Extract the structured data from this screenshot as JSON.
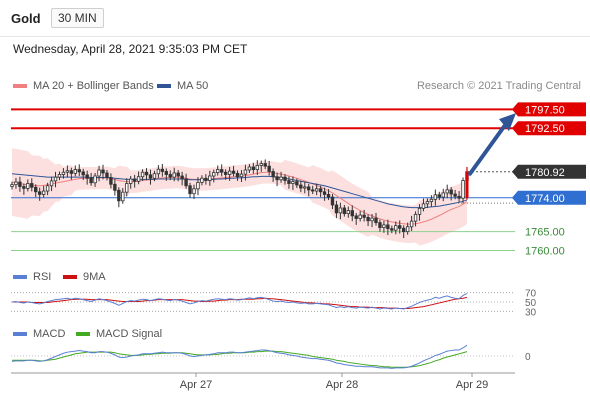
{
  "header": {
    "instrument": "Gold",
    "timeframe": "30 MIN"
  },
  "datetime": "Wednesday, April 28, 2021 9:35:03 PM CET",
  "credit": "Research © 2021 Trading Central",
  "colors": {
    "ma20": "#f08080",
    "ma50": "#2f5597",
    "bollinger": "#fbd5d5",
    "resistance": "#e00000",
    "pivot": "#2f6fd1",
    "support": "#8fd18f",
    "arrow": "#2f5597",
    "last": "#333333",
    "rsi": "#5a7fd4",
    "rsi_ma": "#cc1111",
    "macd": "#5a7fd4",
    "macd_signal": "#44aa22"
  },
  "legend_main": [
    {
      "label": "MA 20 + Bollinger Bands",
      "color": "#f08080"
    },
    {
      "label": "MA 50",
      "color": "#2f5597"
    }
  ],
  "legend_rsi": [
    {
      "label": "RSI",
      "color": "#5a7fd4"
    },
    {
      "label": "9MA",
      "color": "#cc1111"
    }
  ],
  "legend_macd": [
    {
      "label": "MACD",
      "color": "#5a7fd4"
    },
    {
      "label": "MACD Signal",
      "color": "#44aa22"
    }
  ],
  "chart_data": {
    "type": "candlestick",
    "ylim": [
      1758,
      1800
    ],
    "x_ticks": [
      "Apr 27",
      "Apr 28",
      "Apr 29"
    ],
    "levels": [
      {
        "label": "1797.50",
        "value": 1797.5,
        "kind": "resistance"
      },
      {
        "label": "1792.50",
        "value": 1792.5,
        "kind": "resistance"
      },
      {
        "label": "1780.92",
        "value": 1780.92,
        "kind": "last"
      },
      {
        "label": "1774.00",
        "value": 1774.0,
        "kind": "pivot"
      },
      {
        "label": "1765.00",
        "value": 1765.0,
        "kind": "support"
      },
      {
        "label": "1760.00",
        "value": 1760.0,
        "kind": "support"
      }
    ],
    "closes": [
      1777.5,
      1778.2,
      1777.0,
      1776.5,
      1777.8,
      1776.8,
      1775.6,
      1774.9,
      1775.8,
      1777.2,
      1778.5,
      1779.5,
      1780.2,
      1780.8,
      1781.2,
      1780.5,
      1781.5,
      1780.9,
      1780.1,
      1779.2,
      1778.0,
      1779.8,
      1781.4,
      1780.6,
      1779.4,
      1777.6,
      1776.0,
      1773.2,
      1775.5,
      1777.8,
      1779.0,
      1778.4,
      1779.6,
      1780.8,
      1780.1,
      1779.2,
      1780.4,
      1781.6,
      1781.0,
      1780.2,
      1779.5,
      1780.6,
      1779.8,
      1779.0,
      1777.2,
      1775.1,
      1776.4,
      1778.1,
      1779.2,
      1778.6,
      1779.8,
      1780.7,
      1781.5,
      1780.8,
      1780.2,
      1781.1,
      1780.5,
      1779.6,
      1780.3,
      1781.4,
      1782.2,
      1781.5,
      1782.6,
      1783.1,
      1782.4,
      1781.0,
      1779.6,
      1778.8,
      1779.5,
      1778.6,
      1777.8,
      1778.3,
      1777.4,
      1776.6,
      1776.9,
      1776.1,
      1775.8,
      1776.4,
      1775.6,
      1774.9,
      1774.2,
      1772.1,
      1770.0,
      1771.3,
      1769.8,
      1770.6,
      1769.2,
      1768.5,
      1769.4,
      1768.8,
      1767.9,
      1768.6,
      1767.4,
      1766.1,
      1766.8,
      1765.8,
      1765.4,
      1766.6,
      1765.9,
      1765.0,
      1766.3,
      1767.8,
      1769.6,
      1771.2,
      1772.4,
      1773.0,
      1773.6,
      1774.8,
      1774.2,
      1775.3,
      1776.1,
      1775.0,
      1774.4,
      1773.9,
      1778.6,
      1780.92
    ],
    "ma20": [
      1778.2,
      1778.0,
      1777.8,
      1777.6,
      1777.4,
      1777.3,
      1777.2,
      1777.2,
      1777.3,
      1777.5,
      1777.7,
      1777.9,
      1778.1,
      1778.3,
      1778.5,
      1778.7,
      1778.9,
      1779.1,
      1779.2,
      1779.2,
      1779.2,
      1779.2,
      1779.3,
      1779.3,
      1779.3,
      1779.1,
      1778.9,
      1778.6,
      1778.4,
      1778.3,
      1778.3,
      1778.3,
      1778.4,
      1778.6,
      1778.7,
      1778.8,
      1779.0,
      1779.2,
      1779.3,
      1779.4,
      1779.4,
      1779.5,
      1779.5,
      1779.4,
      1779.2,
      1779.0,
      1778.9,
      1778.9,
      1778.9,
      1778.9,
      1779.0,
      1779.1,
      1779.2,
      1779.3,
      1779.4,
      1779.5,
      1779.6,
      1779.7,
      1779.8,
      1779.9,
      1780.1,
      1780.3,
      1780.5,
      1780.7,
      1780.8,
      1780.8,
      1780.7,
      1780.5,
      1780.3,
      1780.1,
      1779.8,
      1779.5,
      1779.2,
      1778.8,
      1778.5,
      1778.1,
      1777.7,
      1777.3,
      1776.9,
      1776.4,
      1775.9,
      1775.3,
      1774.6,
      1773.9,
      1773.2,
      1772.5,
      1771.8,
      1771.2,
      1770.6,
      1770.1,
      1769.6,
      1769.2,
      1768.8,
      1768.4,
      1768.1,
      1767.8,
      1767.6,
      1767.4,
      1767.2,
      1767.1,
      1767.0,
      1767.0,
      1767.1,
      1767.3,
      1767.6,
      1767.9,
      1768.3,
      1768.8,
      1769.3,
      1769.8,
      1770.4,
      1770.9,
      1771.3,
      1771.7,
      1772.3,
      1773.0
    ],
    "ma50": [
      1780.4,
      1780.3,
      1780.2,
      1780.1,
      1780.0,
      1779.9,
      1779.8,
      1779.7,
      1779.6,
      1779.5,
      1779.5,
      1779.5,
      1779.5,
      1779.5,
      1779.5,
      1779.5,
      1779.5,
      1779.5,
      1779.5,
      1779.5,
      1779.4,
      1779.4,
      1779.4,
      1779.4,
      1779.4,
      1779.3,
      1779.2,
      1779.1,
      1779.0,
      1778.9,
      1778.9,
      1778.9,
      1778.9,
      1778.9,
      1778.9,
      1778.9,
      1778.9,
      1779.0,
      1779.0,
      1779.0,
      1779.0,
      1779.0,
      1779.0,
      1779.0,
      1778.9,
      1778.8,
      1778.8,
      1778.8,
      1778.8,
      1778.8,
      1778.8,
      1778.9,
      1779.0,
      1779.0,
      1779.1,
      1779.2,
      1779.2,
      1779.3,
      1779.3,
      1779.4,
      1779.5,
      1779.6,
      1779.6,
      1779.7,
      1779.7,
      1779.7,
      1779.6,
      1779.5,
      1779.4,
      1779.2,
      1779.0,
      1778.8,
      1778.6,
      1778.4,
      1778.2,
      1778.0,
      1777.8,
      1777.6,
      1777.4,
      1777.2,
      1776.9,
      1776.6,
      1776.3,
      1776.0,
      1775.7,
      1775.4,
      1775.1,
      1774.8,
      1774.5,
      1774.2,
      1773.9,
      1773.6,
      1773.3,
      1773.0,
      1772.7,
      1772.4,
      1772.2,
      1772.0,
      1771.8,
      1771.6,
      1771.5,
      1771.4,
      1771.4,
      1771.4,
      1771.4,
      1771.5,
      1771.6,
      1771.7,
      1771.8,
      1772.0,
      1772.2,
      1772.4,
      1772.6,
      1772.8,
      1773.1,
      1773.4
    ],
    "bb_width": [
      9,
      9,
      9,
      9,
      9,
      8,
      8,
      8,
      7,
      7,
      6,
      5,
      5,
      4,
      4,
      4,
      3,
      3,
      3,
      3,
      3,
      3,
      3,
      3,
      3,
      3,
      3,
      4,
      4,
      4,
      3,
      3,
      3,
      3,
      3,
      3,
      3,
      3,
      3,
      3,
      3,
      3,
      3,
      3,
      3,
      3,
      3,
      3,
      3,
      3,
      3,
      3,
      3,
      3,
      3,
      3,
      3,
      3,
      3,
      3,
      3,
      3,
      3,
      3,
      3,
      3,
      3,
      3,
      3,
      4,
      4,
      4,
      4,
      4,
      4,
      4,
      5,
      5,
      5,
      5,
      5,
      6,
      6,
      6,
      6,
      6,
      6,
      6,
      6,
      6,
      6,
      5,
      5,
      5,
      5,
      5,
      5,
      5,
      5,
      5,
      5,
      5,
      5,
      6,
      6,
      6,
      6,
      6,
      6,
      6,
      6,
      6,
      6,
      6,
      6,
      6
    ],
    "rsi": [
      50,
      51,
      49,
      48,
      50,
      49,
      47,
      46,
      48,
      51,
      53,
      55,
      56,
      57,
      58,
      56,
      58,
      57,
      55,
      53,
      51,
      54,
      57,
      55,
      53,
      50,
      47,
      43,
      47,
      51,
      53,
      52,
      54,
      56,
      55,
      53,
      55,
      57,
      56,
      54,
      53,
      55,
      54,
      52,
      49,
      46,
      48,
      51,
      53,
      52,
      54,
      56,
      57,
      56,
      55,
      57,
      56,
      54,
      55,
      57,
      59,
      57,
      59,
      60,
      58,
      55,
      52,
      51,
      52,
      50,
      49,
      50,
      48,
      47,
      48,
      46,
      46,
      47,
      46,
      45,
      44,
      41,
      38,
      40,
      38,
      40,
      38,
      37,
      39,
      38,
      37,
      39,
      37,
      35,
      37,
      36,
      35,
      37,
      36,
      35,
      38,
      41,
      45,
      49,
      52,
      54,
      56,
      60,
      58,
      61,
      63,
      60,
      58,
      57,
      64,
      68
    ],
    "rsi_ma": [
      50,
      50,
      50,
      50,
      50,
      49,
      49,
      49,
      49,
      49,
      50,
      51,
      52,
      53,
      54,
      55,
      56,
      56,
      56,
      56,
      55,
      55,
      55,
      55,
      55,
      54,
      53,
      52,
      51,
      51,
      51,
      51,
      51,
      52,
      53,
      53,
      54,
      55,
      55,
      55,
      55,
      55,
      55,
      55,
      54,
      53,
      52,
      52,
      51,
      51,
      52,
      52,
      53,
      54,
      54,
      55,
      55,
      55,
      56,
      56,
      56,
      56,
      57,
      57,
      58,
      57,
      57,
      56,
      55,
      54,
      53,
      52,
      51,
      50,
      49,
      48,
      48,
      47,
      47,
      46,
      46,
      45,
      44,
      43,
      42,
      41,
      40,
      40,
      39,
      39,
      39,
      38,
      38,
      38,
      38,
      37,
      37,
      37,
      36,
      36,
      36,
      37,
      38,
      39,
      40,
      42,
      44,
      46,
      48,
      50,
      52,
      54,
      56,
      57,
      58,
      60
    ],
    "macd": [
      -1.0,
      -0.9,
      -0.9,
      -0.9,
      -0.8,
      -0.8,
      -0.9,
      -1.0,
      -0.9,
      -0.7,
      -0.4,
      -0.1,
      0.2,
      0.5,
      0.7,
      0.8,
      0.9,
      1.0,
      0.9,
      0.8,
      0.6,
      0.6,
      0.8,
      0.8,
      0.7,
      0.5,
      0.2,
      -0.2,
      -0.3,
      -0.2,
      0.0,
      0.1,
      0.2,
      0.4,
      0.4,
      0.4,
      0.5,
      0.6,
      0.7,
      0.6,
      0.6,
      0.6,
      0.6,
      0.5,
      0.3,
      0.0,
      -0.1,
      0.0,
      0.1,
      0.2,
      0.3,
      0.4,
      0.6,
      0.6,
      0.6,
      0.7,
      0.7,
      0.6,
      0.6,
      0.7,
      0.8,
      0.9,
      1.0,
      1.1,
      1.1,
      1.0,
      0.8,
      0.6,
      0.5,
      0.4,
      0.2,
      0.1,
      0.0,
      -0.2,
      -0.3,
      -0.4,
      -0.5,
      -0.5,
      -0.6,
      -0.7,
      -0.8,
      -1.0,
      -1.3,
      -1.4,
      -1.6,
      -1.7,
      -1.8,
      -1.9,
      -1.9,
      -2.0,
      -2.0,
      -2.0,
      -2.1,
      -2.2,
      -2.2,
      -2.2,
      -2.3,
      -2.2,
      -2.2,
      -2.2,
      -2.1,
      -1.9,
      -1.6,
      -1.3,
      -0.9,
      -0.6,
      -0.3,
      0.1,
      0.3,
      0.6,
      0.9,
      1.0,
      1.1,
      1.1,
      1.5,
      2.0
    ],
    "macd_signal": [
      -0.8,
      -0.8,
      -0.8,
      -0.8,
      -0.8,
      -0.8,
      -0.8,
      -0.9,
      -0.9,
      -0.8,
      -0.7,
      -0.6,
      -0.4,
      -0.2,
      0.0,
      0.2,
      0.4,
      0.5,
      0.6,
      0.7,
      0.7,
      0.7,
      0.7,
      0.7,
      0.7,
      0.7,
      0.6,
      0.4,
      0.3,
      0.2,
      0.1,
      0.1,
      0.1,
      0.2,
      0.3,
      0.3,
      0.4,
      0.4,
      0.5,
      0.5,
      0.5,
      0.6,
      0.6,
      0.6,
      0.5,
      0.4,
      0.3,
      0.2,
      0.2,
      0.2,
      0.2,
      0.3,
      0.3,
      0.4,
      0.5,
      0.5,
      0.6,
      0.6,
      0.6,
      0.6,
      0.7,
      0.7,
      0.8,
      0.8,
      0.9,
      0.9,
      0.9,
      0.8,
      0.8,
      0.7,
      0.6,
      0.5,
      0.4,
      0.3,
      0.2,
      0.1,
      -0.1,
      -0.2,
      -0.3,
      -0.4,
      -0.5,
      -0.6,
      -0.8,
      -0.9,
      -1.0,
      -1.2,
      -1.3,
      -1.4,
      -1.5,
      -1.6,
      -1.7,
      -1.8,
      -1.8,
      -1.9,
      -2.0,
      -2.0,
      -2.1,
      -2.1,
      -2.1,
      -2.1,
      -2.1,
      -2.0,
      -1.9,
      -1.8,
      -1.6,
      -1.4,
      -1.2,
      -0.9,
      -0.7,
      -0.4,
      -0.2,
      0.0,
      0.2,
      0.4,
      0.6,
      0.8
    ],
    "rsi_ticks": [
      "70",
      "50",
      "30"
    ],
    "macd_ticks": [
      "0"
    ]
  }
}
